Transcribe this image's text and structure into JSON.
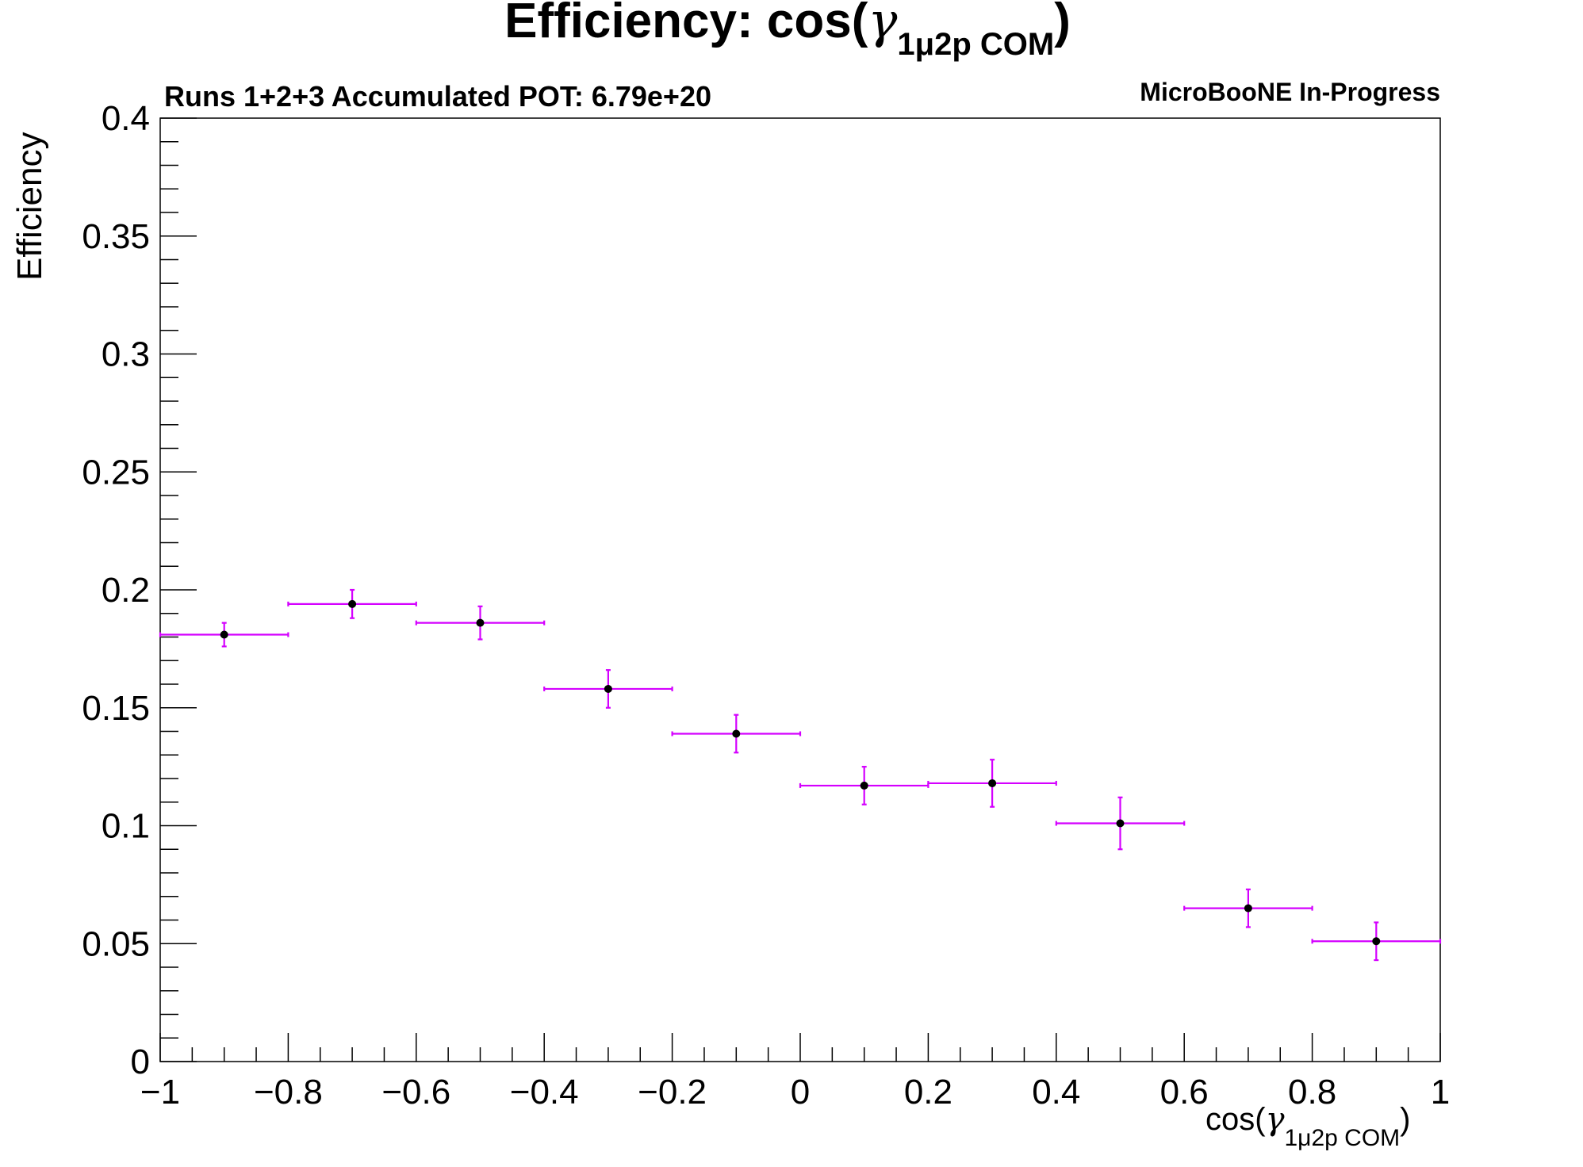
{
  "chart_data": {
    "type": "scatter",
    "title": {
      "main": "Efficiency: cos(",
      "greek": "γ",
      "sub": "1μ2p COM",
      "close": ")"
    },
    "subtitle_left": "Runs 1+2+3 Accumulated POT: 6.79e+20",
    "subtitle_right": "MicroBooNE In-Progress",
    "xlabel": {
      "main": "cos(",
      "greek": "γ",
      "sub": "1μ2p COM",
      "close": ")"
    },
    "ylabel": "Efficiency",
    "xlim": [
      -1,
      1
    ],
    "ylim": [
      0,
      0.4
    ],
    "x_ticks": [
      -1,
      -0.8,
      -0.6,
      -0.4,
      -0.2,
      0,
      0.2,
      0.4,
      0.6,
      0.8,
      1
    ],
    "x_tick_labels": [
      "−1",
      "−0.8",
      "−0.6",
      "−0.4",
      "−0.2",
      "0",
      "0.2",
      "0.4",
      "0.6",
      "0.8",
      "1"
    ],
    "y_ticks": [
      0,
      0.05,
      0.1,
      0.15,
      0.2,
      0.25,
      0.3,
      0.35,
      0.4
    ],
    "y_tick_labels": [
      "0",
      "0.05",
      "0.1",
      "0.15",
      "0.2",
      "0.25",
      "0.3",
      "0.35",
      "0.4"
    ],
    "bin_edges": [
      -1,
      -0.8,
      -0.6,
      -0.4,
      -0.2,
      0,
      0.2,
      0.4,
      0.6,
      0.8,
      1
    ],
    "x": [
      -0.9,
      -0.7,
      -0.5,
      -0.3,
      -0.1,
      0.1,
      0.3,
      0.5,
      0.7,
      0.9
    ],
    "y": [
      0.181,
      0.194,
      0.186,
      0.158,
      0.139,
      0.117,
      0.118,
      0.101,
      0.065,
      0.051
    ],
    "y_err": [
      0.005,
      0.006,
      0.007,
      0.008,
      0.008,
      0.008,
      0.01,
      0.011,
      0.008,
      0.008
    ],
    "x_err": 0.1,
    "colors": {
      "error_bar": "#d400ff",
      "marker": "#000000",
      "frame": "#000000"
    },
    "grid": false,
    "legend": "none"
  }
}
